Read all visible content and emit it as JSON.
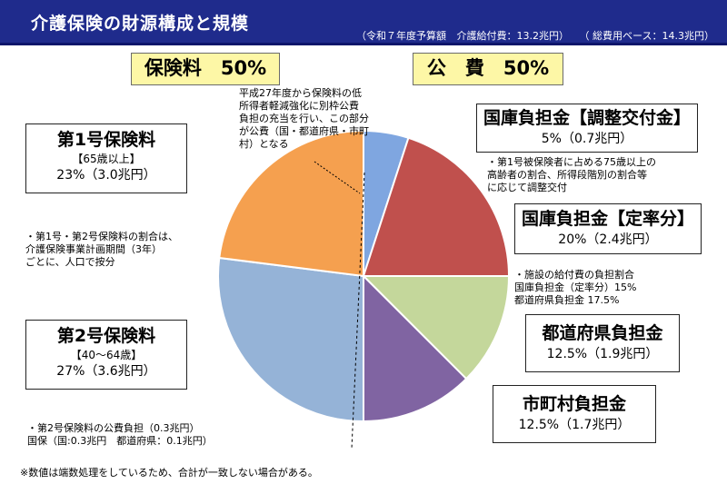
{
  "header": {
    "title": "介護保険の財源構成と規模",
    "budget_note": "（令和７年度予算額",
    "benefit_note": "介護給付費：13.2兆円）",
    "total_note": "（ 総費用ベース：14.3兆円）"
  },
  "sections": {
    "insurance": "保険料　50%",
    "public": "公　費　50%"
  },
  "chart_data": {
    "type": "pie",
    "start": "12 o'clock",
    "direction": "clockwise",
    "slices": [
      {
        "label": "国庫負担金【調整交付金】",
        "value": 5,
        "amount": "0.7兆円",
        "color": "#7fa6e0"
      },
      {
        "label": "国庫負担金【定率分】",
        "value": 20,
        "amount": "2.4兆円",
        "color": "#c0504d"
      },
      {
        "label": "都道府県負担金",
        "value": 12.5,
        "amount": "1.9兆円",
        "color": "#c4d79b"
      },
      {
        "label": "市町村負担金",
        "value": 12.5,
        "amount": "1.7兆円",
        "color": "#8064a2"
      },
      {
        "label": "第2号保険料",
        "value": 27,
        "amount": "3.6兆円",
        "color": "#95b3d7"
      },
      {
        "label": "第1号保険料",
        "value": 23,
        "amount": "3.0兆円",
        "color": "#f5a04f"
      }
    ]
  },
  "labels": {
    "chosei": {
      "title": "国庫負担金【調整交付金】",
      "value": "5%（0.7兆円）"
    },
    "teiritsu": {
      "title": "国庫負担金【定率分】",
      "value": "20%（2.4兆円）"
    },
    "pref": {
      "title": "都道府県負担金",
      "value": "12.5%（1.9兆円）"
    },
    "muni": {
      "title": "市町村負担金",
      "value": "12.5%（1.7兆円）"
    },
    "g1": {
      "title": "第1号保険料",
      "sub": "【65歳以上】",
      "value": "23%（3.0兆円）"
    },
    "g2": {
      "title": "第2号保険料",
      "sub": "【40～64歳】",
      "value": "27%（3.6兆円）"
    }
  },
  "notes": {
    "top": [
      "平成27年度から保険料の低",
      "所得者軽減強化に別枠公費",
      "負担の充当を行い、この部分",
      "が公費（国・都道府県・市町",
      "村）となる"
    ],
    "chosei": [
      "・第1号被保険者に占める75歳以上の",
      "高齢者の割合、所得段階別の割合等",
      "に応じて調整交付"
    ],
    "left": [
      "・第1号・第2号保険料の割合は、",
      "介護保険事業計画期間（3年）",
      "ごとに、人口で按分"
    ],
    "teiritsu": [
      "・施設の給付費の負担割合",
      "国庫負担金（定率分）15%",
      "都道府県負担金 17.5%"
    ],
    "bottom": [
      "・第2号保険料の公費負担（0.3兆円）",
      "国保（国:0.3兆円　都道府県：0.1兆円）"
    ],
    "footnote": "※数値は端数処理をしているため、合計が一致しない場合がある。"
  }
}
